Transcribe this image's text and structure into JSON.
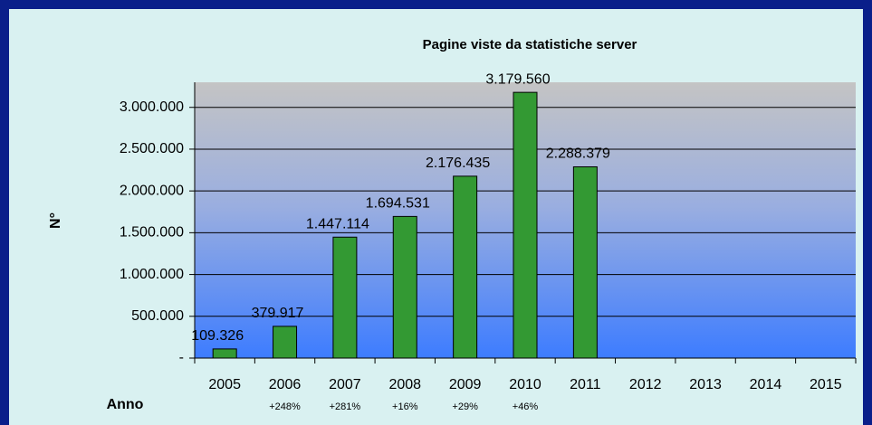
{
  "chart_data": {
    "type": "bar",
    "title": "Pagine viste da statistiche server",
    "ylabel": "N°",
    "xlabel": "Anno",
    "categories": [
      "2005",
      "2006",
      "2007",
      "2008",
      "2009",
      "2010",
      "2011",
      "2012",
      "2013",
      "2014",
      "2015"
    ],
    "values": [
      109326,
      379917,
      1447114,
      1694531,
      2176435,
      3179560,
      2288379,
      null,
      null,
      null,
      null
    ],
    "value_labels": [
      "109.326",
      "379.917",
      "1.447.114",
      "1.694.531",
      "2.176.435",
      "3.179.560",
      "2.288.379",
      null,
      null,
      null,
      null
    ],
    "growth_labels": [
      null,
      "+248%",
      "+281%",
      "+16%",
      "+29%",
      "+46%",
      null,
      null,
      null,
      null,
      null
    ],
    "color": "#339933",
    "ylim": [
      0,
      3300000
    ],
    "yticks": [
      {
        "value": 0,
        "label": "-"
      },
      {
        "value": 500000,
        "label": "500.000"
      },
      {
        "value": 1000000,
        "label": "1.000.000"
      },
      {
        "value": 1500000,
        "label": "1.500.000"
      },
      {
        "value": 2000000,
        "label": "2.000.000"
      },
      {
        "value": 2500000,
        "label": "2.500.000"
      },
      {
        "value": 3000000,
        "label": "3.000.000"
      }
    ],
    "grid": true
  }
}
